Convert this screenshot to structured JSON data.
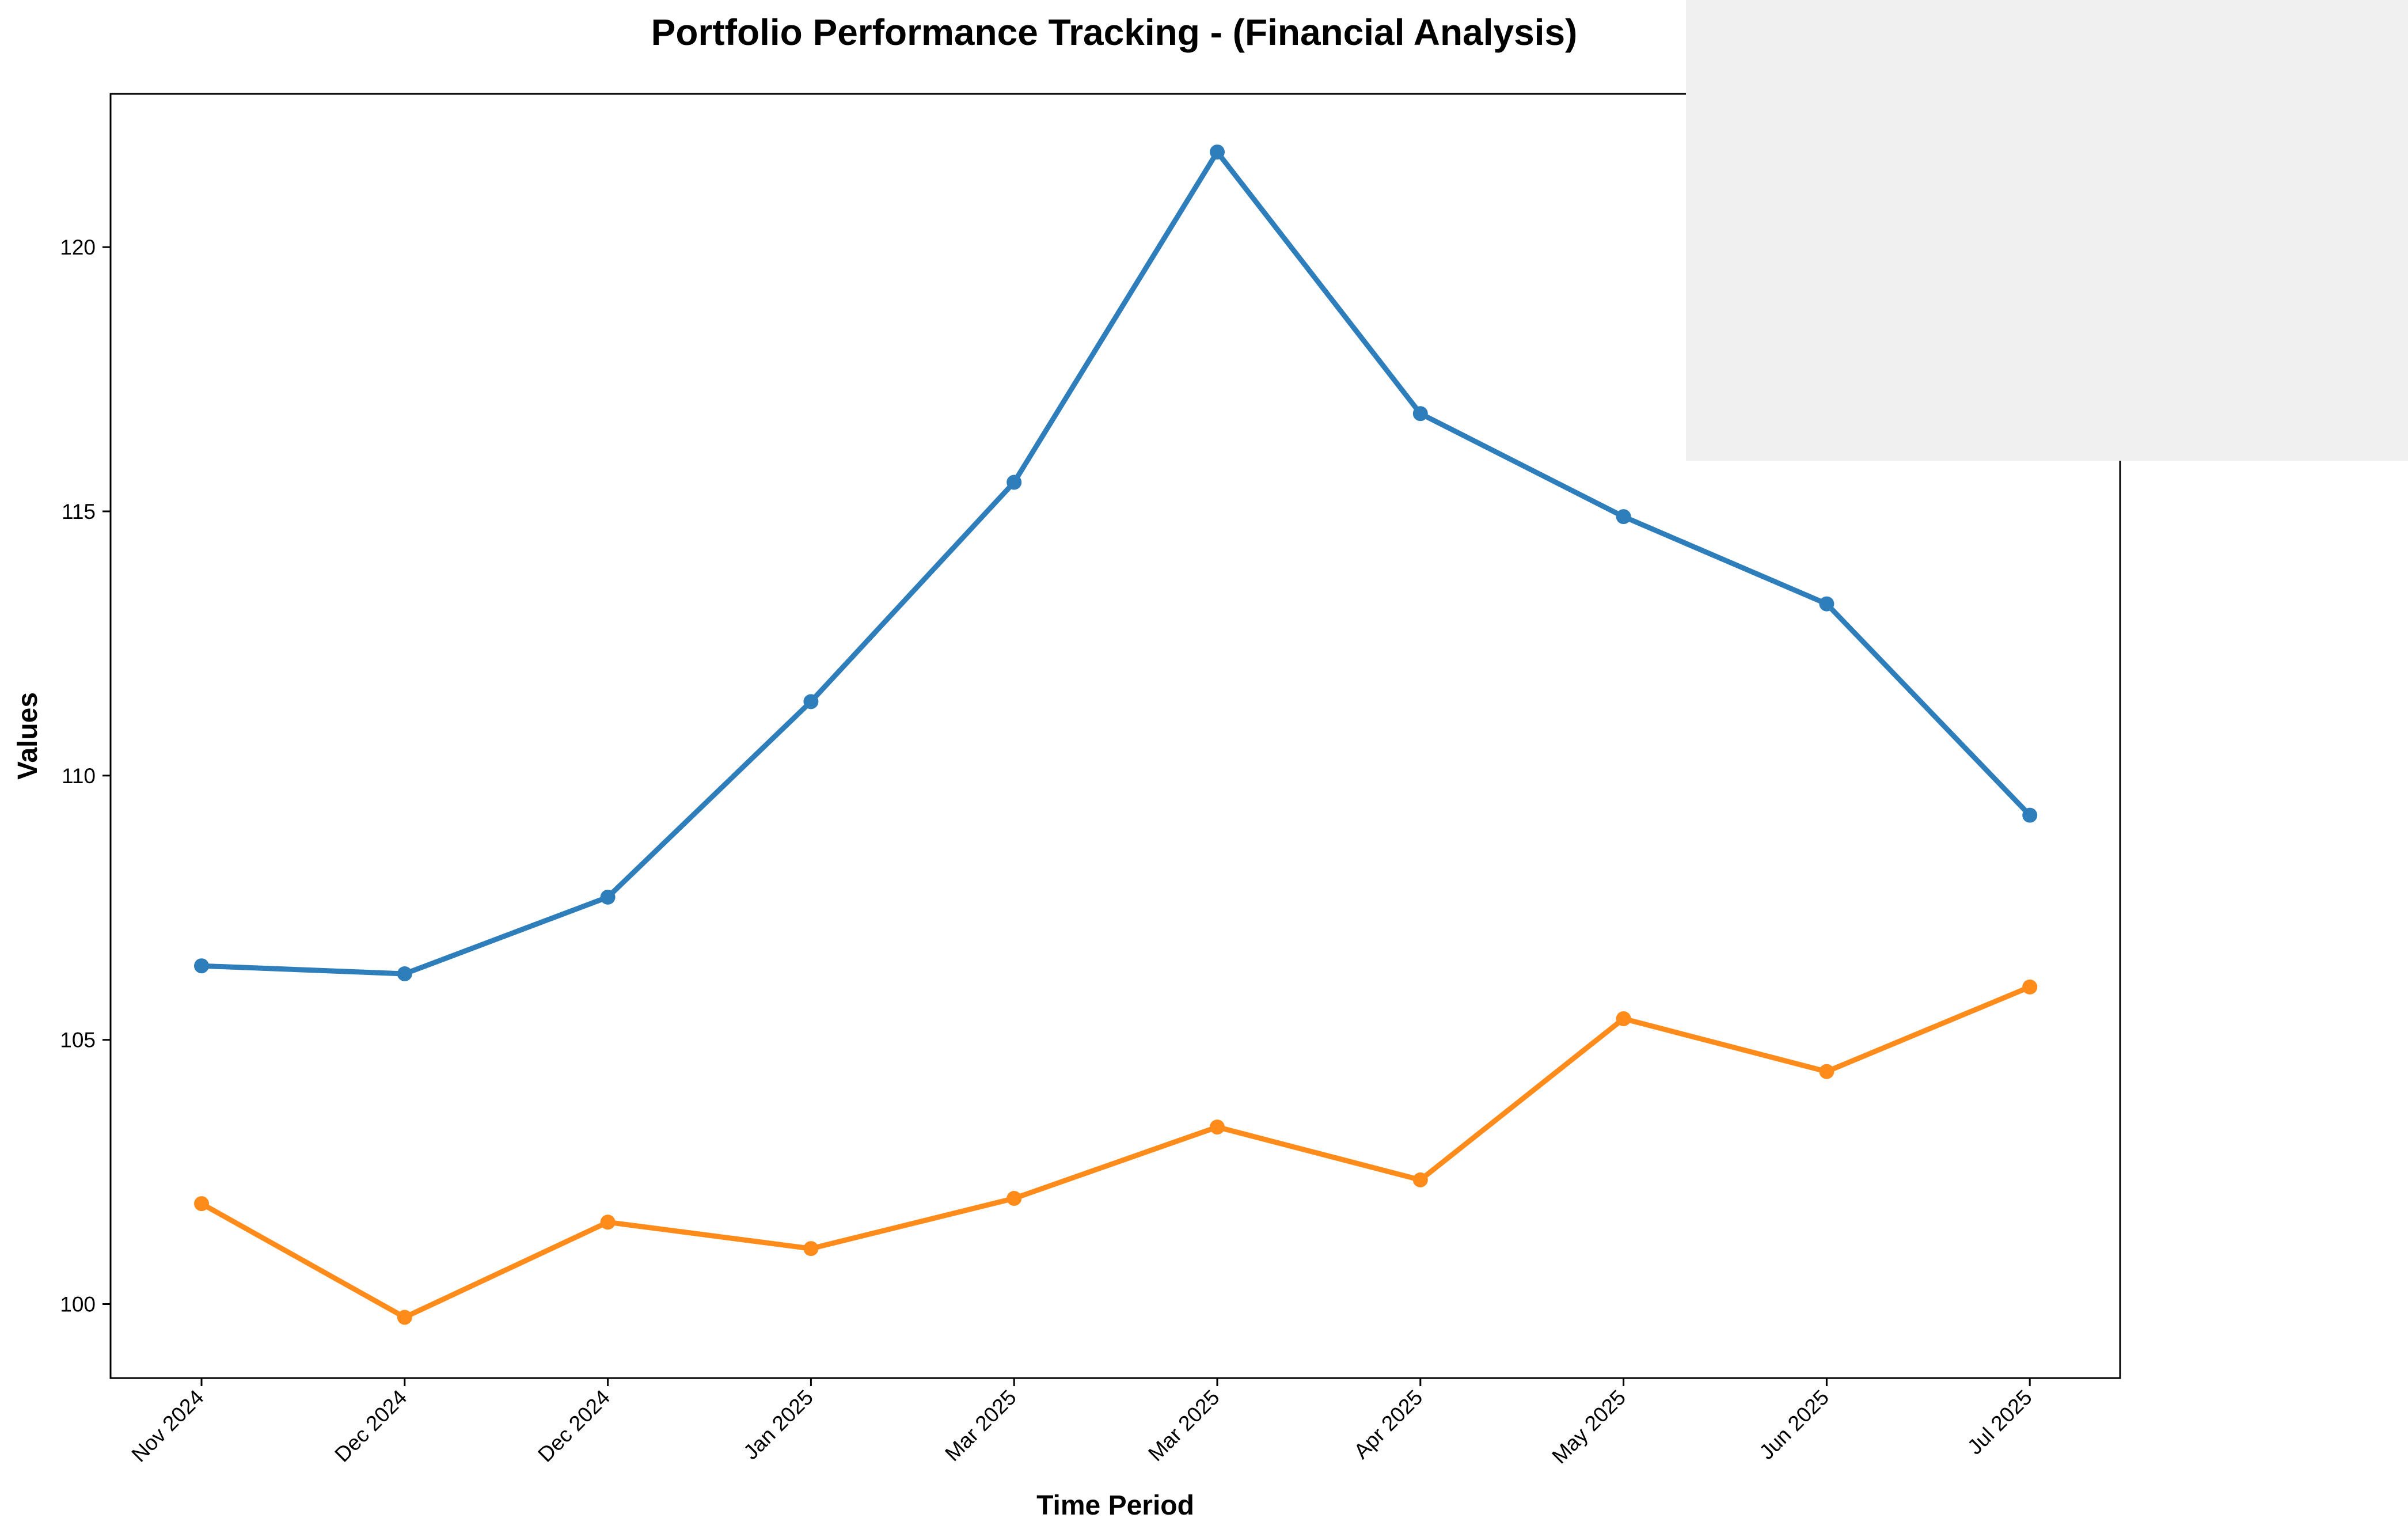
{
  "chart_data": {
    "type": "line",
    "title": "Portfolio Performance Tracking - (Financial Analysis)",
    "xlabel": "Time Period",
    "ylabel": "Values",
    "categories": [
      "Nov 2024",
      "Dec 2024",
      "Dec 2024",
      "Jan 2025",
      "Mar 2025",
      "Mar 2025",
      "Apr 2025",
      "May 2025",
      "Jun 2025",
      "Jul 2025"
    ],
    "series": [
      {
        "color": "#2f7ebc",
        "values": [
          106.4,
          106.25,
          107.7,
          111.4,
          115.55,
          121.8,
          116.85,
          114.9,
          113.25,
          109.25
        ]
      },
      {
        "color": "#ff8c1a",
        "values": [
          101.9,
          99.75,
          101.55,
          101.05,
          102.0,
          103.35,
          102.35,
          105.4,
          104.4,
          106.0
        ]
      }
    ],
    "ylim": [
      98.6,
      122.9
    ],
    "yticks": [
      100,
      105,
      110,
      115,
      120
    ],
    "grid": false,
    "legend": "none"
  }
}
